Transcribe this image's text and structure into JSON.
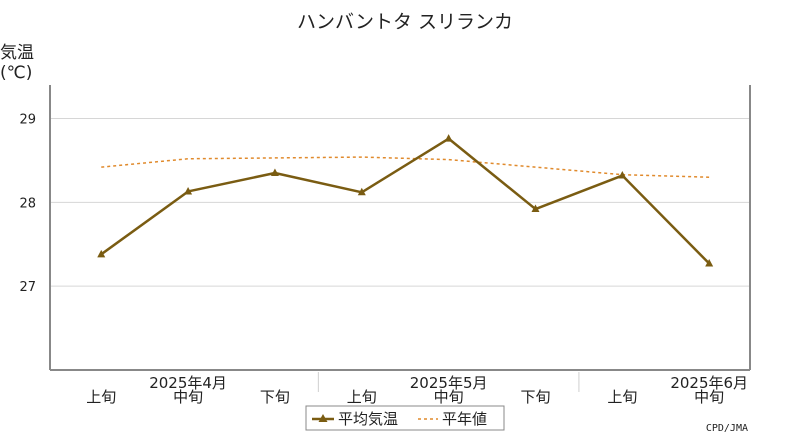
{
  "chart_data": {
    "type": "line",
    "title": "ハンバントタ スリランカ",
    "ylabel_line1": "気温",
    "ylabel_line2": "(℃)",
    "xlabel": "",
    "ylim": [
      26.0,
      29.4
    ],
    "yticks": [
      27,
      28,
      29
    ],
    "ytick_labels": [
      "27",
      "28",
      "29"
    ],
    "grid": true,
    "categories": [
      "上旬",
      "中旬",
      "下旬",
      "上旬",
      "中旬",
      "下旬",
      "上旬",
      "中旬"
    ],
    "month_labels": [
      {
        "label": "2025年4月",
        "index": 1
      },
      {
        "label": "2025年5月",
        "index": 4
      },
      {
        "label": "2025年6月",
        "index": 7
      }
    ],
    "series": [
      {
        "name": "平均気温",
        "style": "solid-triangle",
        "color": "#7a5c12",
        "values": [
          27.38,
          28.13,
          28.35,
          28.12,
          28.76,
          27.92,
          28.32,
          27.27
        ]
      },
      {
        "name": "平年値",
        "style": "dashed",
        "color": "#e08a2c",
        "values": [
          28.42,
          28.52,
          28.53,
          28.54,
          28.51,
          28.42,
          28.33,
          28.3
        ]
      }
    ],
    "legend_position": "bottom-center",
    "credit": "CPD/JMA"
  }
}
